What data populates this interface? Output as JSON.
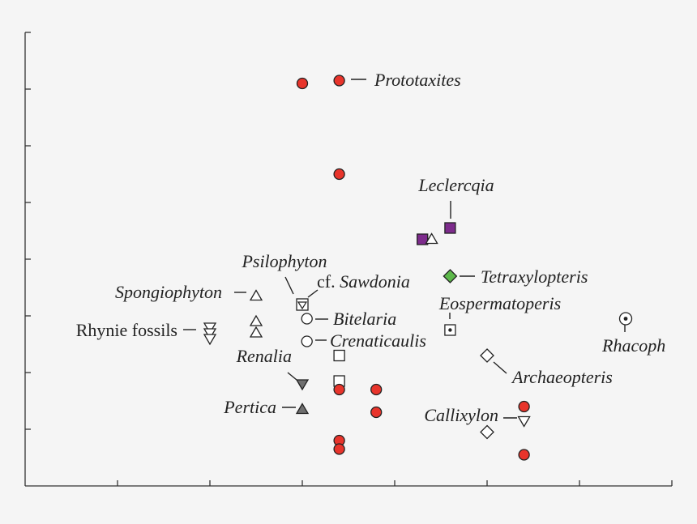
{
  "chart_data": {
    "type": "scatter",
    "title": "",
    "xlabel": "",
    "ylabel": "",
    "xlim": [
      0,
      7
    ],
    "ylim": [
      0,
      8
    ],
    "x_ticks": [
      1,
      2,
      3,
      4,
      5,
      6,
      7
    ],
    "y_ticks": [
      1,
      2,
      3,
      4,
      5,
      6,
      7,
      8
    ],
    "tick_labels_shown": false,
    "grid": false,
    "legend": "none",
    "colors": {
      "red": "#e8342b",
      "purple": "#7d2b8c",
      "green": "#5cb84a",
      "gray": "#6f6f6f",
      "white": "#ffffff"
    },
    "points": [
      {
        "x": 3.0,
        "y": 7.1,
        "marker": "circle",
        "fill": "red"
      },
      {
        "x": 3.4,
        "y": 7.15,
        "marker": "circle",
        "fill": "red"
      },
      {
        "x": 3.4,
        "y": 5.5,
        "marker": "circle",
        "fill": "red"
      },
      {
        "x": 4.3,
        "y": 4.35,
        "marker": "square",
        "fill": "purple"
      },
      {
        "x": 4.4,
        "y": 4.35,
        "marker": "triangle-up",
        "fill": "white"
      },
      {
        "x": 4.6,
        "y": 4.55,
        "marker": "square",
        "fill": "purple"
      },
      {
        "x": 4.6,
        "y": 3.7,
        "marker": "diamond",
        "fill": "green"
      },
      {
        "x": 2.5,
        "y": 3.35,
        "marker": "triangle-up",
        "fill": "white"
      },
      {
        "x": 2.5,
        "y": 2.9,
        "marker": "triangle-up",
        "fill": "white"
      },
      {
        "x": 2.5,
        "y": 2.7,
        "marker": "triangle-up",
        "fill": "white"
      },
      {
        "x": 2.0,
        "y": 2.8,
        "marker": "triangle-down",
        "fill": "white"
      },
      {
        "x": 2.0,
        "y": 2.7,
        "marker": "triangle-down",
        "fill": "white"
      },
      {
        "x": 2.0,
        "y": 2.6,
        "marker": "triangle-down",
        "fill": "white"
      },
      {
        "x": 3.0,
        "y": 3.2,
        "marker": "square-triangle-down",
        "fill": "white"
      },
      {
        "x": 3.05,
        "y": 2.95,
        "marker": "circle",
        "fill": "white"
      },
      {
        "x": 3.05,
        "y": 2.55,
        "marker": "circle",
        "fill": "white"
      },
      {
        "x": 3.4,
        "y": 2.3,
        "marker": "square",
        "fill": "white"
      },
      {
        "x": 3.4,
        "y": 1.85,
        "marker": "square",
        "fill": "white"
      },
      {
        "x": 4.6,
        "y": 2.75,
        "marker": "square-dot",
        "fill": "white"
      },
      {
        "x": 6.5,
        "y": 2.95,
        "marker": "circle-dot",
        "fill": "white"
      },
      {
        "x": 5.0,
        "y": 2.3,
        "marker": "diamond",
        "fill": "white"
      },
      {
        "x": 5.0,
        "y": 0.95,
        "marker": "diamond",
        "fill": "white"
      },
      {
        "x": 3.0,
        "y": 1.8,
        "marker": "triangle-down",
        "fill": "gray"
      },
      {
        "x": 3.0,
        "y": 1.35,
        "marker": "triangle-up",
        "fill": "gray"
      },
      {
        "x": 3.4,
        "y": 1.7,
        "marker": "circle",
        "fill": "red"
      },
      {
        "x": 3.8,
        "y": 1.7,
        "marker": "circle",
        "fill": "red"
      },
      {
        "x": 3.8,
        "y": 1.3,
        "marker": "circle",
        "fill": "red"
      },
      {
        "x": 3.4,
        "y": 0.8,
        "marker": "circle",
        "fill": "red"
      },
      {
        "x": 3.4,
        "y": 0.65,
        "marker": "circle",
        "fill": "red"
      },
      {
        "x": 5.4,
        "y": 1.4,
        "marker": "circle",
        "fill": "red"
      },
      {
        "x": 5.4,
        "y": 1.15,
        "marker": "triangle-down",
        "fill": "white"
      },
      {
        "x": 5.4,
        "y": 0.55,
        "marker": "circle",
        "fill": "red"
      }
    ],
    "annotations": [
      {
        "text": "Prototaxites",
        "x": 3.4,
        "y": 7.15
      },
      {
        "text": "Leclercqia",
        "x": 4.6,
        "y": 4.55
      },
      {
        "text": "Tetraxylopteris",
        "x": 4.6,
        "y": 3.7
      },
      {
        "text": "Psilophyton",
        "x": 3.0,
        "y": 3.2
      },
      {
        "text": "cf. Sawdonia",
        "x": 3.0,
        "y": 3.2
      },
      {
        "text": "Spongiophyton",
        "x": 2.5,
        "y": 3.35
      },
      {
        "text": "Eospermatoperis",
        "x": 4.6,
        "y": 2.75
      },
      {
        "text": "Bitelaria",
        "x": 3.05,
        "y": 2.95
      },
      {
        "text": "Rhynie fossils",
        "x": 2.0,
        "y": 2.7
      },
      {
        "text": "Crenaticaulis",
        "x": 3.05,
        "y": 2.55
      },
      {
        "text": "Rhacoph",
        "x": 6.5,
        "y": 2.95
      },
      {
        "text": "Renalia",
        "x": 3.0,
        "y": 1.8
      },
      {
        "text": "Archaeopteris",
        "x": 5.0,
        "y": 2.3
      },
      {
        "text": "Pertica",
        "x": 3.0,
        "y": 1.35
      },
      {
        "text": "Callixylon",
        "x": 5.4,
        "y": 1.15
      }
    ]
  }
}
